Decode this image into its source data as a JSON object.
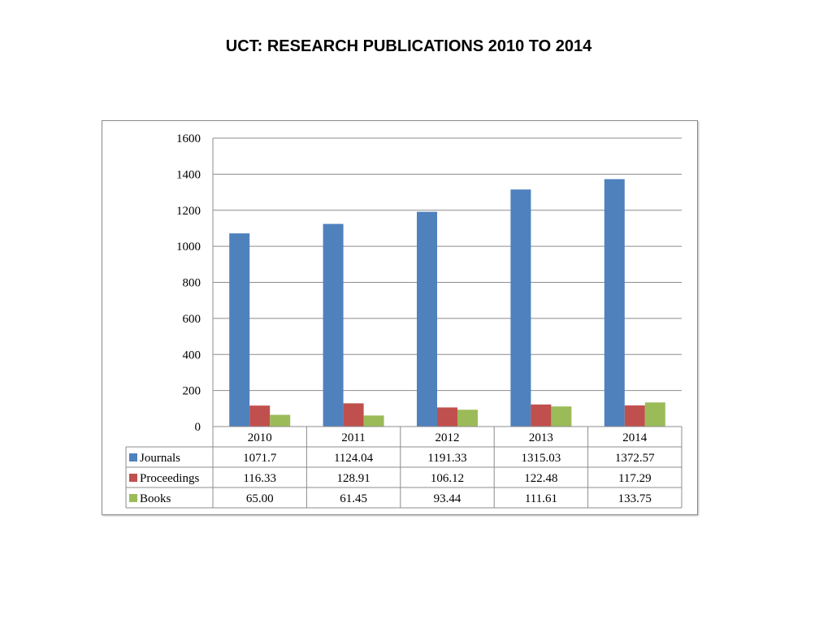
{
  "page": {
    "title": "UCT: RESEARCH PUBLICATIONS 2010 TO 2014"
  },
  "chart_data": {
    "type": "bar",
    "categories": [
      "2010",
      "2011",
      "2012",
      "2013",
      "2014"
    ],
    "series": [
      {
        "name": "Journals",
        "color": "#4f81bd",
        "values": [
          1071.7,
          1124.04,
          1191.33,
          1315.03,
          1372.57
        ],
        "labels": [
          "1071.7",
          "1124.04",
          "1191.33",
          "1315.03",
          "1372.57"
        ]
      },
      {
        "name": "Proceedings",
        "color": "#c0504d",
        "values": [
          116.33,
          128.91,
          106.12,
          122.48,
          117.29
        ],
        "labels": [
          "116.33",
          "128.91",
          "106.12",
          "122.48",
          "117.29"
        ]
      },
      {
        "name": "Books",
        "color": "#9bbb59",
        "values": [
          65.0,
          61.45,
          93.44,
          111.61,
          133.75
        ],
        "labels": [
          "65.00",
          "61.45",
          "93.44",
          "111.61",
          "133.75"
        ]
      }
    ],
    "yticks": [
      "0",
      "200",
      "400",
      "600",
      "800",
      "1000",
      "1200",
      "1400",
      "1600"
    ],
    "ylim": [
      0,
      1600
    ],
    "grid": true,
    "legend": "data-table-left",
    "data_table": true
  }
}
